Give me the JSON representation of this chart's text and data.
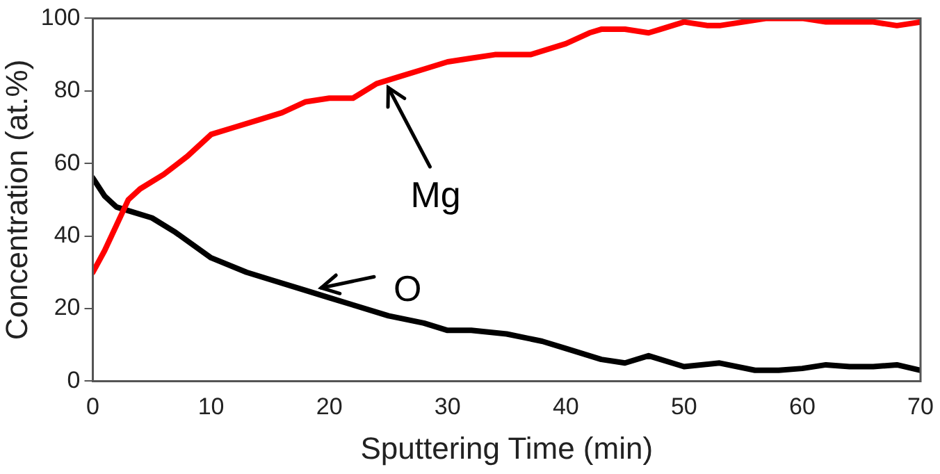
{
  "chart_data": {
    "type": "line",
    "xlabel": "Sputtering Time (min)",
    "ylabel": "Concentration (at.%)",
    "xlim": [
      0,
      70
    ],
    "xticks": [
      0,
      10,
      20,
      30,
      40,
      50,
      60,
      70
    ],
    "ylim": [
      0,
      100
    ],
    "yticks": [
      0,
      20,
      40,
      60,
      80,
      100
    ],
    "grid": false,
    "marker": "none",
    "line_style": "solid",
    "series": [
      {
        "name": "Mg",
        "color": "#ff0000",
        "x": [
          0,
          1,
          2,
          3,
          4,
          6,
          8,
          10,
          12,
          14,
          16,
          18,
          20,
          22,
          24,
          26,
          28,
          30,
          32,
          34,
          37,
          40,
          42,
          43,
          45,
          47,
          48,
          50,
          52,
          53,
          55,
          57,
          60,
          62,
          64,
          66,
          68,
          70
        ],
        "values": [
          30,
          36,
          43,
          50,
          53,
          57,
          62,
          68,
          70,
          72,
          74,
          77,
          78,
          78,
          82,
          84,
          86,
          88,
          89,
          90,
          90,
          93,
          96,
          97,
          97,
          96,
          97,
          99,
          98,
          98,
          99,
          100,
          100,
          99,
          99,
          99,
          98,
          99
        ]
      },
      {
        "name": "O",
        "color": "#000000",
        "x": [
          0,
          1,
          2,
          3,
          5,
          7,
          10,
          13,
          15,
          18,
          20,
          22,
          25,
          28,
          30,
          32,
          35,
          38,
          40,
          43,
          45,
          47,
          50,
          53,
          56,
          58,
          60,
          62,
          64,
          66,
          68,
          70
        ],
        "values": [
          56,
          51,
          48,
          47,
          45,
          41,
          34,
          30,
          28,
          25,
          23,
          21,
          18,
          16,
          14,
          14,
          13,
          11,
          9,
          6,
          5,
          7,
          4,
          5,
          3,
          3,
          3.5,
          4.5,
          4,
          4,
          4.5,
          3
        ]
      }
    ]
  }
}
